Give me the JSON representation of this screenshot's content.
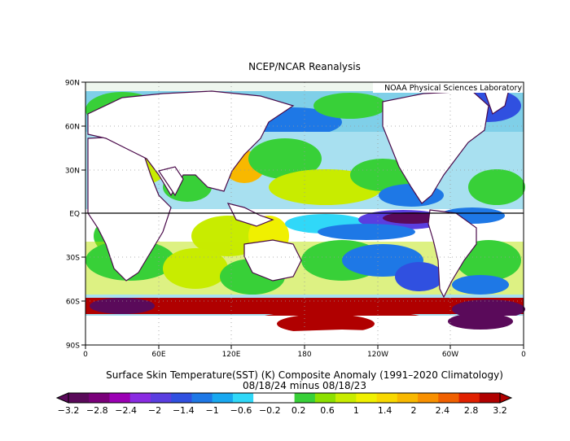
{
  "map": {
    "title": "NCEP/NCAR Reanalysis",
    "watermark": "NOAA Physical Sciences Laboratory",
    "lat_labels": [
      "90N",
      "60N",
      "30N",
      "EQ",
      "30S",
      "60S",
      "90S"
    ],
    "lon_labels": [
      "0",
      "60E",
      "120E",
      "180",
      "120W",
      "60W",
      "0"
    ],
    "caption_line1": "Surface Skin Temperature(SST) (K) Composite Anomaly (1991–2020 Climatology)",
    "caption_line2": "08/18/24 minus 08/18/23"
  },
  "colorbar": {
    "labels": [
      "−3.2",
      "−2.8",
      "−2.4",
      "−2",
      "−1.4",
      "−1",
      "−0.6",
      "−0.2",
      "0.2",
      "0.6",
      "1",
      "1.4",
      "2",
      "2.4",
      "2.8",
      "3.2"
    ],
    "colors": [
      "#5a0a5a",
      "#7a007a",
      "#9b00b4",
      "#8a2be2",
      "#5a3ee0",
      "#3050e0",
      "#1e78e6",
      "#18a8f0",
      "#30d8f8",
      "#ffffff",
      "#ffffff",
      "#38d038",
      "#8ce000",
      "#c8ec00",
      "#f0f000",
      "#f8d800",
      "#f8b800",
      "#f89000",
      "#f06000",
      "#e02000",
      "#b00000"
    ]
  }
}
